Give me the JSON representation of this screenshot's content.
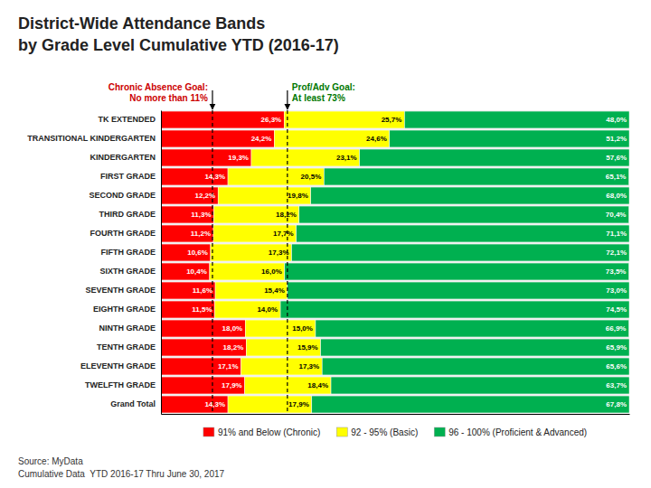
{
  "chart_data": {
    "type": "bar",
    "orientation": "horizontal",
    "stacked": true,
    "data_labels": true,
    "tick_labels": "y",
    "legend": "bottom",
    "title": "District-Wide Attendance Bands",
    "subtitle": "by Grade Level Cumulative YTD (2016-17)",
    "categories": [
      "TK EXTENDED",
      "TRANSITIONAL KINDERGARTEN",
      "KINDERGARTEN",
      "FIRST GRADE",
      "SECOND GRADE",
      "THIRD GRADE",
      "FOURTH GRADE",
      "FIFTH GRADE",
      "SIXTH GRADE",
      "SEVENTH GRADE",
      "EIGHTH GRADE",
      "NINTH GRADE",
      "TENTH GRADE",
      "ELEVENTH GRADE",
      "TWELFTH GRADE",
      "Grand Total"
    ],
    "series": [
      {
        "name": "91% and Below (Chronic)",
        "color": "#FF0000",
        "values": [
          26.3,
          24.2,
          19.3,
          14.3,
          12.2,
          11.3,
          11.2,
          10.6,
          10.4,
          11.6,
          11.5,
          18.0,
          18.2,
          17.1,
          17.9,
          14.3
        ],
        "value_labels": [
          "26,3%",
          "24,2%",
          "19,3%",
          "14,3%",
          "12,2%",
          "11,3%",
          "11,2%",
          "10,6%",
          "10,4%",
          "11,6%",
          "11,5%",
          "18,0%",
          "18,2%",
          "17,1%",
          "17,9%",
          "14,3%"
        ]
      },
      {
        "name": "92 - 95% (Basic)",
        "color": "#FFFF00",
        "values": [
          25.7,
          24.6,
          23.1,
          20.5,
          19.8,
          18.2,
          17.7,
          17.3,
          16.0,
          15.4,
          14.0,
          15.0,
          15.9,
          17.3,
          18.4,
          17.9
        ],
        "value_labels": [
          "25,7%",
          "24,6%",
          "23,1%",
          "20,5%",
          "19,8%",
          "18,2%",
          "17,7%",
          "17,3%",
          "16,0%",
          "15,4%",
          "14,0%",
          "15,0%",
          "15,9%",
          "17,3%",
          "18,4%",
          "17,9%"
        ]
      },
      {
        "name": "96 - 100% (Proficient & Advanced)",
        "color": "#00B050",
        "values": [
          48.0,
          51.2,
          57.6,
          65.1,
          68.0,
          70.4,
          71.1,
          72.1,
          73.5,
          73.0,
          74.5,
          66.9,
          65.9,
          65.6,
          63.7,
          67.8
        ],
        "value_labels": [
          "48,0%",
          "51,2%",
          "57,6%",
          "65,1%",
          "68,0%",
          "70,4%",
          "71,1%",
          "72,1%",
          "73,5%",
          "73,0%",
          "74,5%",
          "66,9%",
          "65,9%",
          "65,6%",
          "63,7%",
          "67,8%"
        ]
      }
    ],
    "xlim": [
      0,
      100
    ],
    "annotations": [
      {
        "x": 11.0,
        "label": [
          "Chronic Absence Goal:",
          "No more than 11%"
        ],
        "color": "#CC0000"
      },
      {
        "x": 27.0,
        "label": [
          "Prof/Adv Goal:",
          "At least 73%"
        ],
        "color": "#007700"
      }
    ],
    "source": [
      "Source: MyData",
      "Cumulative Data  YTD 2016-17 Thru June 30, 2017"
    ]
  }
}
